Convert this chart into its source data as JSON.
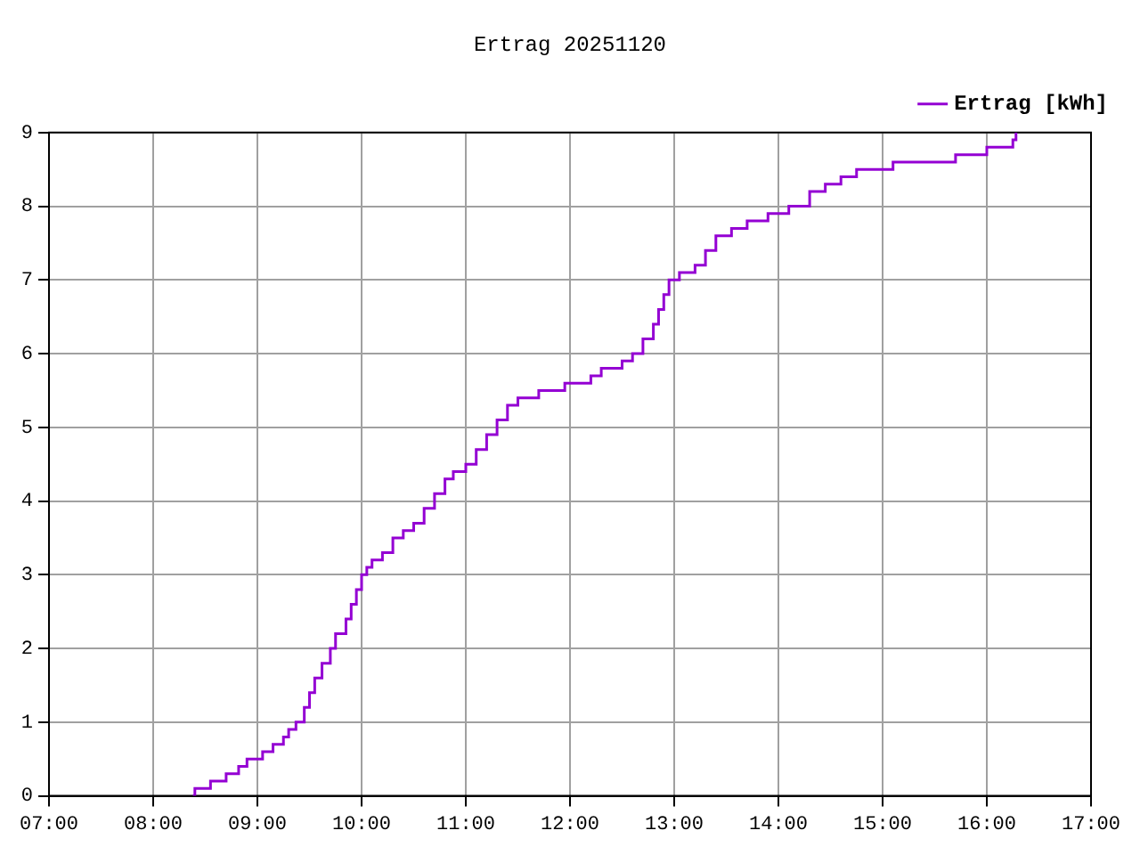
{
  "chart_data": {
    "type": "step",
    "title": "Ertrag 20251120",
    "xlim": [
      7,
      17
    ],
    "ylim": [
      0,
      9
    ],
    "xticks": [
      {
        "value": 7,
        "label": "07:00"
      },
      {
        "value": 8,
        "label": "08:00"
      },
      {
        "value": 9,
        "label": "09:00"
      },
      {
        "value": 10,
        "label": "10:00"
      },
      {
        "value": 11,
        "label": "11:00"
      },
      {
        "value": 12,
        "label": "12:00"
      },
      {
        "value": 13,
        "label": "13:00"
      },
      {
        "value": 14,
        "label": "14:00"
      },
      {
        "value": 15,
        "label": "15:00"
      },
      {
        "value": 16,
        "label": "16:00"
      },
      {
        "value": 17,
        "label": "17:00"
      }
    ],
    "yticks": [
      0,
      1,
      2,
      3,
      4,
      5,
      6,
      7,
      8,
      9
    ],
    "grid": true,
    "legend": "top right",
    "line_style": "solid",
    "marker": "none",
    "series": [
      {
        "name": "Ertrag [kWh]",
        "color": "#9400d3",
        "x": [
          8.38,
          8.4,
          8.55,
          8.7,
          8.82,
          8.9,
          9.05,
          9.15,
          9.25,
          9.3,
          9.37,
          9.45,
          9.5,
          9.55,
          9.62,
          9.7,
          9.75,
          9.85,
          9.9,
          9.95,
          10.0,
          10.05,
          10.1,
          10.2,
          10.3,
          10.4,
          10.5,
          10.6,
          10.7,
          10.8,
          10.88,
          11.0,
          11.1,
          11.2,
          11.3,
          11.4,
          11.5,
          11.7,
          11.95,
          12.2,
          12.3,
          12.5,
          12.6,
          12.7,
          12.8,
          12.85,
          12.9,
          12.95,
          13.05,
          13.2,
          13.3,
          13.4,
          13.55,
          13.7,
          13.9,
          14.1,
          14.3,
          14.45,
          14.6,
          14.75,
          15.1,
          15.7,
          16.0,
          16.25,
          16.28
        ],
        "values": [
          0,
          0.1,
          0.2,
          0.3,
          0.4,
          0.5,
          0.6,
          0.7,
          0.8,
          0.9,
          1.0,
          1.2,
          1.4,
          1.6,
          1.8,
          2.0,
          2.2,
          2.4,
          2.6,
          2.8,
          3.0,
          3.1,
          3.2,
          3.3,
          3.5,
          3.6,
          3.7,
          3.9,
          4.1,
          4.3,
          4.4,
          4.5,
          4.7,
          4.9,
          5.1,
          5.3,
          5.4,
          5.5,
          5.6,
          5.7,
          5.8,
          5.9,
          6.0,
          6.2,
          6.4,
          6.6,
          6.8,
          7.0,
          7.1,
          7.2,
          7.4,
          7.6,
          7.7,
          7.8,
          7.9,
          8.0,
          8.2,
          8.3,
          8.4,
          8.5,
          8.6,
          8.7,
          8.8,
          8.9,
          9.0
        ]
      }
    ]
  }
}
